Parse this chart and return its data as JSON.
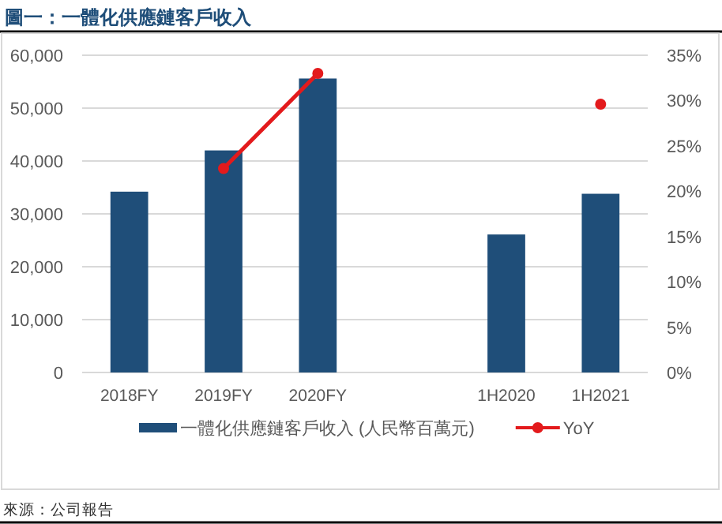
{
  "chart_data": {
    "type": "bar",
    "title": "圖一：一體化供應鏈客戶收入",
    "categories": [
      "2018FY",
      "2019FY",
      "2020FY",
      null,
      "1H2020",
      "1H2021"
    ],
    "series": [
      {
        "name": "一體化供應鏈客戶收入 (人民幣百萬元)",
        "color": "#1f4e79",
        "values": [
          34200,
          42000,
          55600,
          null,
          26100,
          33800
        ]
      },
      {
        "name": "YoY",
        "type": "line",
        "axis": "y2",
        "color": "#e31a1c",
        "marker": "circle",
        "values": [
          null,
          22.5,
          33.0,
          null,
          null,
          29.6
        ]
      }
    ],
    "ylim": [
      0,
      60000
    ],
    "yticks": [
      {
        "value": 0,
        "label": "0"
      },
      {
        "value": 10000,
        "label": "10,000"
      },
      {
        "value": 20000,
        "label": "20,000"
      },
      {
        "value": 30000,
        "label": "30,000"
      },
      {
        "value": 40000,
        "label": "40,000"
      },
      {
        "value": 50000,
        "label": "50,000"
      },
      {
        "value": 60000,
        "label": "60,000"
      }
    ],
    "y2lim": [
      0,
      35
    ],
    "y2ticks": [
      {
        "value": 0,
        "label": "0%"
      },
      {
        "value": 5,
        "label": "5%"
      },
      {
        "value": 10,
        "label": "10%"
      },
      {
        "value": 15,
        "label": "15%"
      },
      {
        "value": 20,
        "label": "20%"
      },
      {
        "value": 25,
        "label": "25%"
      },
      {
        "value": 30,
        "label": "30%"
      },
      {
        "value": 35,
        "label": "35%"
      }
    ],
    "grid": "y",
    "legend": "bottom",
    "annotations": [
      "來源：公司報告"
    ]
  }
}
